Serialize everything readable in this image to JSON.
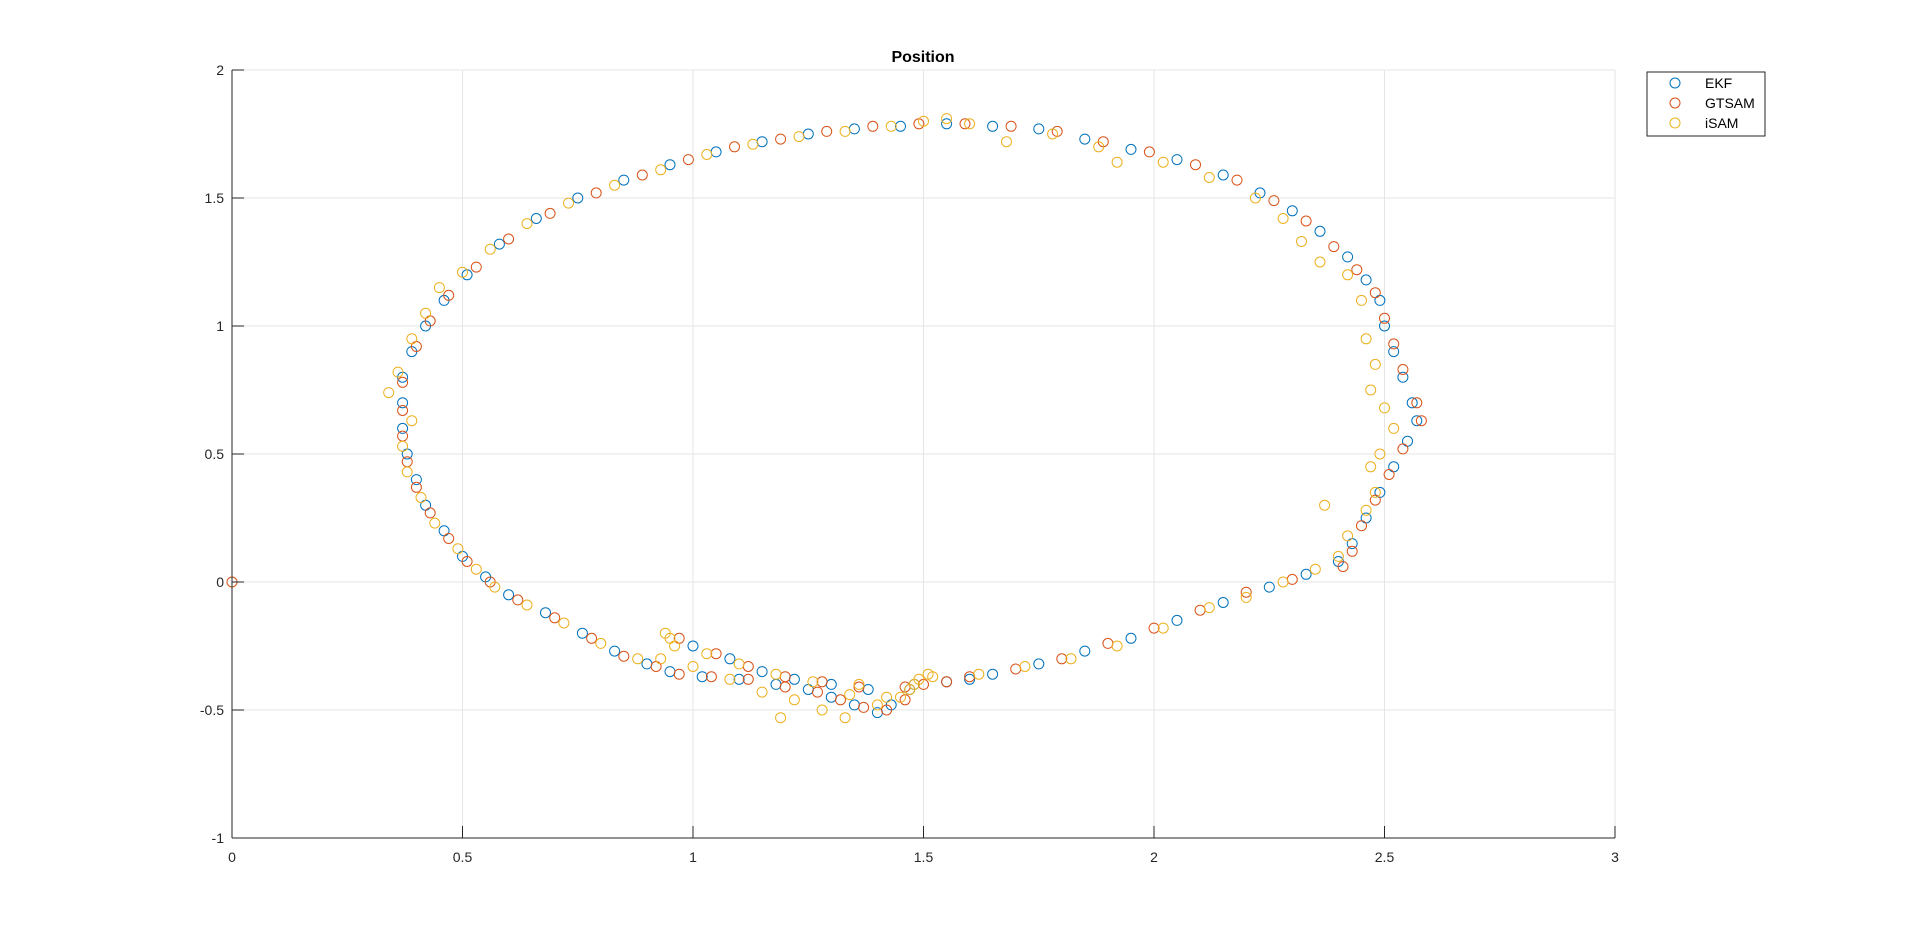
{
  "chart_data": {
    "type": "scatter",
    "title": "Position",
    "xlabel": "",
    "ylabel": "",
    "xlim": [
      0,
      3
    ],
    "ylim": [
      -1,
      2
    ],
    "xticks": [
      "0",
      "0.5",
      "1",
      "1.5",
      "2",
      "2.5",
      "3"
    ],
    "xtick_values": [
      0,
      0.5,
      1,
      1.5,
      2,
      2.5,
      3
    ],
    "yticks": [
      "-1",
      "-0.5",
      "0",
      "0.5",
      "1",
      "1.5",
      "2"
    ],
    "ytick_values": [
      -1,
      -0.5,
      0,
      0.5,
      1,
      1.5,
      2
    ],
    "grid": true,
    "legend_position": "outside top-right",
    "marker": "open-circle",
    "series": [
      {
        "name": "EKF",
        "color": "#0072BD",
        "points": [
          [
            0.37,
            0.8
          ],
          [
            0.39,
            0.9
          ],
          [
            0.42,
            1.0
          ],
          [
            0.46,
            1.1
          ],
          [
            0.51,
            1.2
          ],
          [
            0.58,
            1.32
          ],
          [
            0.66,
            1.42
          ],
          [
            0.75,
            1.5
          ],
          [
            0.85,
            1.57
          ],
          [
            0.95,
            1.63
          ],
          [
            1.05,
            1.68
          ],
          [
            1.15,
            1.72
          ],
          [
            1.25,
            1.75
          ],
          [
            1.35,
            1.77
          ],
          [
            1.45,
            1.78
          ],
          [
            1.55,
            1.79
          ],
          [
            1.65,
            1.78
          ],
          [
            1.75,
            1.77
          ],
          [
            1.85,
            1.73
          ],
          [
            1.95,
            1.69
          ],
          [
            2.05,
            1.65
          ],
          [
            2.15,
            1.59
          ],
          [
            2.23,
            1.52
          ],
          [
            2.3,
            1.45
          ],
          [
            2.36,
            1.37
          ],
          [
            2.42,
            1.27
          ],
          [
            2.46,
            1.18
          ],
          [
            2.49,
            1.1
          ],
          [
            2.5,
            1.0
          ],
          [
            2.52,
            0.9
          ],
          [
            2.54,
            0.8
          ],
          [
            2.56,
            0.7
          ],
          [
            2.57,
            0.63
          ],
          [
            2.55,
            0.55
          ],
          [
            2.52,
            0.45
          ],
          [
            2.49,
            0.35
          ],
          [
            2.46,
            0.25
          ],
          [
            2.43,
            0.15
          ],
          [
            2.4,
            0.08
          ],
          [
            2.33,
            0.03
          ],
          [
            2.25,
            -0.02
          ],
          [
            2.15,
            -0.08
          ],
          [
            2.05,
            -0.15
          ],
          [
            1.95,
            -0.22
          ],
          [
            1.85,
            -0.27
          ],
          [
            1.75,
            -0.32
          ],
          [
            1.65,
            -0.36
          ],
          [
            1.55,
            -0.39
          ],
          [
            1.47,
            -0.42
          ],
          [
            1.43,
            -0.48
          ],
          [
            1.4,
            -0.51
          ],
          [
            1.35,
            -0.48
          ],
          [
            1.3,
            -0.45
          ],
          [
            1.25,
            -0.42
          ],
          [
            1.18,
            -0.4
          ],
          [
            1.1,
            -0.38
          ],
          [
            1.02,
            -0.37
          ],
          [
            0.95,
            -0.35
          ],
          [
            0.9,
            -0.32
          ],
          [
            0.83,
            -0.27
          ],
          [
            0.76,
            -0.2
          ],
          [
            0.68,
            -0.12
          ],
          [
            0.6,
            -0.05
          ],
          [
            0.55,
            0.02
          ],
          [
            0.5,
            0.1
          ],
          [
            0.46,
            0.2
          ],
          [
            0.42,
            0.3
          ],
          [
            0.4,
            0.4
          ],
          [
            0.38,
            0.5
          ],
          [
            0.37,
            0.6
          ],
          [
            0.37,
            0.7
          ],
          [
            1.0,
            -0.25
          ],
          [
            1.08,
            -0.3
          ],
          [
            1.15,
            -0.35
          ],
          [
            1.22,
            -0.38
          ],
          [
            1.3,
            -0.4
          ],
          [
            1.38,
            -0.42
          ],
          [
            1.48,
            -0.4
          ],
          [
            1.6,
            -0.38
          ]
        ]
      },
      {
        "name": "GTSAM",
        "color": "#D95319",
        "points": [
          [
            0.0,
            0.0
          ],
          [
            0.37,
            0.78
          ],
          [
            0.4,
            0.92
          ],
          [
            0.43,
            1.02
          ],
          [
            0.47,
            1.12
          ],
          [
            0.53,
            1.23
          ],
          [
            0.6,
            1.34
          ],
          [
            0.69,
            1.44
          ],
          [
            0.79,
            1.52
          ],
          [
            0.89,
            1.59
          ],
          [
            0.99,
            1.65
          ],
          [
            1.09,
            1.7
          ],
          [
            1.19,
            1.73
          ],
          [
            1.29,
            1.76
          ],
          [
            1.39,
            1.78
          ],
          [
            1.49,
            1.79
          ],
          [
            1.59,
            1.79
          ],
          [
            1.69,
            1.78
          ],
          [
            1.79,
            1.76
          ],
          [
            1.89,
            1.72
          ],
          [
            1.99,
            1.68
          ],
          [
            2.09,
            1.63
          ],
          [
            2.18,
            1.57
          ],
          [
            2.26,
            1.49
          ],
          [
            2.33,
            1.41
          ],
          [
            2.39,
            1.31
          ],
          [
            2.44,
            1.22
          ],
          [
            2.48,
            1.13
          ],
          [
            2.5,
            1.03
          ],
          [
            2.52,
            0.93
          ],
          [
            2.54,
            0.83
          ],
          [
            2.57,
            0.7
          ],
          [
            2.58,
            0.63
          ],
          [
            2.54,
            0.52
          ],
          [
            2.51,
            0.42
          ],
          [
            2.48,
            0.32
          ],
          [
            2.45,
            0.22
          ],
          [
            2.43,
            0.12
          ],
          [
            2.41,
            0.06
          ],
          [
            2.3,
            0.01
          ],
          [
            2.2,
            -0.04
          ],
          [
            2.1,
            -0.11
          ],
          [
            2.0,
            -0.18
          ],
          [
            1.9,
            -0.24
          ],
          [
            1.8,
            -0.3
          ],
          [
            1.7,
            -0.34
          ],
          [
            1.6,
            -0.37
          ],
          [
            1.5,
            -0.4
          ],
          [
            1.46,
            -0.46
          ],
          [
            1.42,
            -0.5
          ],
          [
            1.37,
            -0.49
          ],
          [
            1.32,
            -0.46
          ],
          [
            1.27,
            -0.43
          ],
          [
            1.2,
            -0.41
          ],
          [
            1.12,
            -0.38
          ],
          [
            1.04,
            -0.37
          ],
          [
            0.97,
            -0.36
          ],
          [
            0.92,
            -0.33
          ],
          [
            0.85,
            -0.29
          ],
          [
            0.78,
            -0.22
          ],
          [
            0.7,
            -0.14
          ],
          [
            0.62,
            -0.07
          ],
          [
            0.56,
            0.0
          ],
          [
            0.51,
            0.08
          ],
          [
            0.47,
            0.17
          ],
          [
            0.43,
            0.27
          ],
          [
            0.4,
            0.37
          ],
          [
            0.38,
            0.47
          ],
          [
            0.37,
            0.57
          ],
          [
            0.37,
            0.67
          ],
          [
            0.97,
            -0.22
          ],
          [
            1.05,
            -0.28
          ],
          [
            1.12,
            -0.33
          ],
          [
            1.2,
            -0.37
          ],
          [
            1.28,
            -0.39
          ],
          [
            1.36,
            -0.41
          ],
          [
            1.46,
            -0.41
          ],
          [
            1.55,
            -0.39
          ]
        ]
      },
      {
        "name": "iSAM",
        "color": "#EDB120",
        "points": [
          [
            0.34,
            0.74
          ],
          [
            0.36,
            0.82
          ],
          [
            0.39,
            0.95
          ],
          [
            0.42,
            1.05
          ],
          [
            0.45,
            1.15
          ],
          [
            0.5,
            1.21
          ],
          [
            0.56,
            1.3
          ],
          [
            0.64,
            1.4
          ],
          [
            0.73,
            1.48
          ],
          [
            0.83,
            1.55
          ],
          [
            0.93,
            1.61
          ],
          [
            1.03,
            1.67
          ],
          [
            1.13,
            1.71
          ],
          [
            1.23,
            1.74
          ],
          [
            1.33,
            1.76
          ],
          [
            1.43,
            1.78
          ],
          [
            1.5,
            1.8
          ],
          [
            1.55,
            1.81
          ],
          [
            1.6,
            1.79
          ],
          [
            1.68,
            1.72
          ],
          [
            1.78,
            1.75
          ],
          [
            1.88,
            1.7
          ],
          [
            1.92,
            1.64
          ],
          [
            2.02,
            1.64
          ],
          [
            2.12,
            1.58
          ],
          [
            2.22,
            1.5
          ],
          [
            2.28,
            1.42
          ],
          [
            2.32,
            1.33
          ],
          [
            2.36,
            1.25
          ],
          [
            2.42,
            1.2
          ],
          [
            2.45,
            1.1
          ],
          [
            2.46,
            0.95
          ],
          [
            2.48,
            0.85
          ],
          [
            2.47,
            0.75
          ],
          [
            2.5,
            0.68
          ],
          [
            2.52,
            0.6
          ],
          [
            2.49,
            0.5
          ],
          [
            2.47,
            0.45
          ],
          [
            2.48,
            0.35
          ],
          [
            2.46,
            0.28
          ],
          [
            2.37,
            0.3
          ],
          [
            2.42,
            0.18
          ],
          [
            2.4,
            0.1
          ],
          [
            2.35,
            0.05
          ],
          [
            2.28,
            0.0
          ],
          [
            2.2,
            -0.06
          ],
          [
            2.12,
            -0.1
          ],
          [
            2.02,
            -0.18
          ],
          [
            1.92,
            -0.25
          ],
          [
            1.82,
            -0.3
          ],
          [
            1.72,
            -0.33
          ],
          [
            1.62,
            -0.36
          ],
          [
            1.52,
            -0.37
          ],
          [
            1.48,
            -0.4
          ],
          [
            1.45,
            -0.45
          ],
          [
            1.4,
            -0.48
          ],
          [
            1.33,
            -0.53
          ],
          [
            1.28,
            -0.5
          ],
          [
            1.22,
            -0.46
          ],
          [
            1.19,
            -0.53
          ],
          [
            1.15,
            -0.43
          ],
          [
            1.08,
            -0.38
          ],
          [
            1.0,
            -0.33
          ],
          [
            0.94,
            -0.2
          ],
          [
            0.95,
            -0.22
          ],
          [
            0.96,
            -0.25
          ],
          [
            0.93,
            -0.3
          ],
          [
            0.88,
            -0.3
          ],
          [
            0.8,
            -0.24
          ],
          [
            0.72,
            -0.16
          ],
          [
            0.64,
            -0.09
          ],
          [
            0.57,
            -0.02
          ],
          [
            0.53,
            0.05
          ],
          [
            0.49,
            0.13
          ],
          [
            0.44,
            0.23
          ],
          [
            0.41,
            0.33
          ],
          [
            0.38,
            0.43
          ],
          [
            0.37,
            0.53
          ],
          [
            0.39,
            0.63
          ],
          [
            1.03,
            -0.28
          ],
          [
            1.1,
            -0.32
          ],
          [
            1.18,
            -0.36
          ],
          [
            1.26,
            -0.39
          ],
          [
            1.34,
            -0.44
          ],
          [
            1.42,
            -0.45
          ],
          [
            1.47,
            -0.42
          ],
          [
            1.49,
            -0.38
          ],
          [
            1.51,
            -0.36
          ],
          [
            1.36,
            -0.4
          ]
        ]
      }
    ]
  }
}
